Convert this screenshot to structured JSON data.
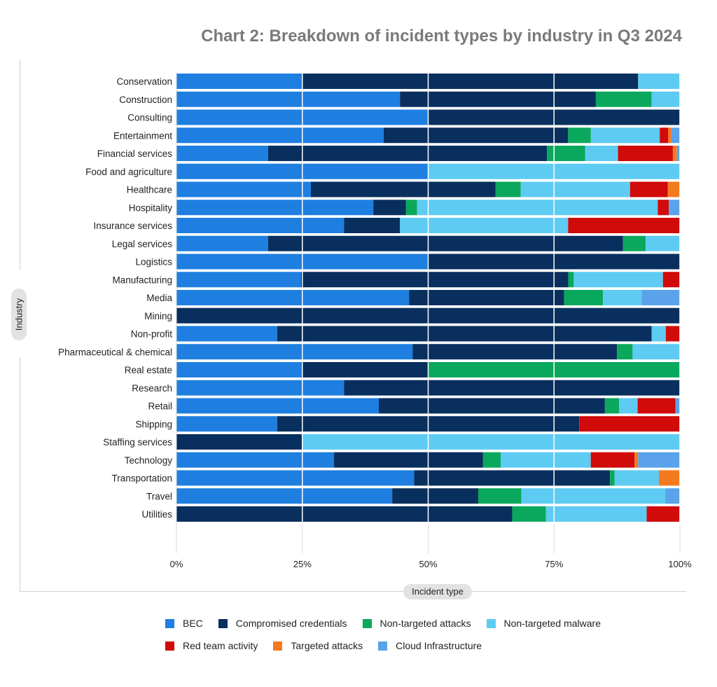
{
  "title": "Chart 2: Breakdown of incident types by industry in Q3 2024",
  "xlabel": "Incident type",
  "ylabel": "Industry",
  "chart_data": {
    "type": "bar",
    "orientation": "horizontal",
    "stacked": "percent",
    "title": "Chart 2: Breakdown of incident types by industry in Q3 2024",
    "xlabel": "Incident type",
    "ylabel": "Industry",
    "xlim": [
      0,
      100
    ],
    "x_ticks": [
      "0%",
      "25%",
      "50%",
      "75%",
      "100%"
    ],
    "grid": "vertical",
    "legend_position": "bottom",
    "categories": [
      "Conservation",
      "Construction",
      "Consulting",
      "Entertainment",
      "Financial services",
      "Food and agriculture",
      "Healthcare",
      "Hospitality",
      "Insurance services",
      "Legal services",
      "Logistics",
      "Manufacturing",
      "Media",
      "Mining",
      "Non-profit",
      "Pharmaceutical & chemical",
      "Real estate",
      "Research",
      "Retail",
      "Shipping",
      "Staffing services",
      "Technology",
      "Transportation",
      "Travel",
      "Utilities"
    ],
    "series": [
      {
        "name": "BEC",
        "color": "#1e7fe0",
        "values": [
          25,
          44.4,
          50,
          39.1,
          18.2,
          50,
          26.7,
          39.1,
          33.3,
          18.2,
          50,
          25,
          46.2,
          0,
          20,
          46.9,
          25,
          33.3,
          40.2,
          20,
          0,
          31.3,
          40.8,
          42.9,
          0
        ]
      },
      {
        "name": "Compromised credentials",
        "color": "#082f5e",
        "values": [
          66.7,
          38.9,
          50,
          34.8,
          55.4,
          0,
          36.7,
          6.5,
          11.1,
          70.5,
          50,
          53.6,
          30.8,
          100,
          74.4,
          40.6,
          25,
          66.7,
          44.9,
          60,
          25,
          29.6,
          33.6,
          17.1,
          66.7
        ]
      },
      {
        "name": "Non-targeted attacks",
        "color": "#0aa85c",
        "values": [
          0,
          11.1,
          0,
          4.3,
          7.6,
          0,
          5,
          2.2,
          0,
          4.5,
          0,
          1.1,
          7.7,
          0,
          0,
          3.1,
          50,
          0,
          2.8,
          0,
          0,
          3.5,
          0.8,
          8.6,
          6.7
        ]
      },
      {
        "name": "Non-targeted malware",
        "color": "#5ecbf2",
        "values": [
          8.3,
          5.6,
          0,
          13,
          6.5,
          50,
          21.7,
          47.8,
          33.4,
          6.8,
          0,
          17.9,
          7.7,
          0,
          2.8,
          9.4,
          0,
          0,
          3.7,
          0,
          75,
          17.9,
          7.6,
          28.6,
          20
        ]
      },
      {
        "name": "Red team activity",
        "color": "#d10a0a",
        "values": [
          0,
          0,
          0,
          1.6,
          10.9,
          0,
          7.5,
          2.2,
          22.2,
          0,
          0,
          3.4,
          0,
          0,
          2.8,
          0,
          0,
          0,
          7.5,
          20,
          0,
          8.7,
          0,
          0,
          6.6
        ]
      },
      {
        "name": "Targeted attacks",
        "color": "#f47a1f",
        "values": [
          0,
          0,
          0,
          0.6,
          0.8,
          0,
          2.4,
          0,
          0,
          0,
          0,
          0,
          0,
          0,
          0,
          0,
          0,
          0,
          0,
          0,
          0,
          0.7,
          3.6,
          0,
          0
        ]
      },
      {
        "name": "Cloud Infrastructure",
        "color": "#5aa2ea",
        "values": [
          0,
          0,
          0,
          1.6,
          0.6,
          0,
          0,
          2.2,
          0,
          0,
          0,
          0,
          7.6,
          0,
          0,
          0,
          0,
          0,
          0.9,
          0,
          0,
          8.3,
          0,
          2.9,
          0
        ]
      }
    ]
  }
}
